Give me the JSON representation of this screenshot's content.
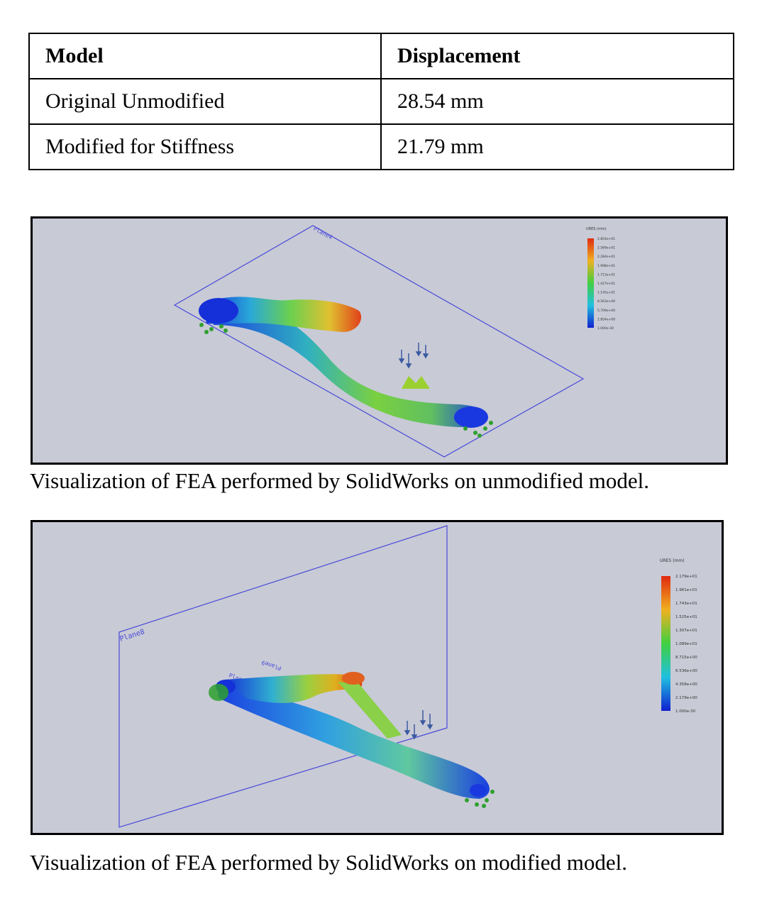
{
  "table": {
    "headers": [
      "Model",
      "Displacement"
    ],
    "rows": [
      {
        "model": "Original Unmodified",
        "displacement": "28.54 mm"
      },
      {
        "model": "Modified for Stiffness",
        "displacement": "21.79 mm"
      }
    ]
  },
  "figure1": {
    "caption": "Visualization of FEA performed by SolidWorks on unmodified model.",
    "plane_label": "Plane4",
    "legend_title": "URES (mm)",
    "legend_values": [
      "2.854e+01",
      "2.569e+01",
      "2.284e+01",
      "1.998e+01",
      "1.713e+01",
      "1.427e+01",
      "1.142e+01",
      "8.563e+00",
      "5.709e+00",
      "2.854e+00",
      "1.000e-30"
    ]
  },
  "figure2": {
    "caption": "Visualization of FEA performed by SolidWorks on modified model.",
    "plane_label": "Plane8",
    "plane_label_2": "Plane9",
    "plane_label_3": "Plane7",
    "legend_title": "URES (mm)",
    "legend_values": [
      "2.179e+01",
      "1.961e+01",
      "1.743e+01",
      "1.525e+01",
      "1.307e+01",
      "1.089e+01",
      "8.715e+00",
      "6.536e+00",
      "4.358e+00",
      "2.179e+00",
      "1.000e-30"
    ]
  },
  "colors": {
    "background": "#c8cad6",
    "plane_line": "#4a4ad8",
    "fixture": "#2ea02e",
    "load_arrow": "#3a5aa0"
  }
}
